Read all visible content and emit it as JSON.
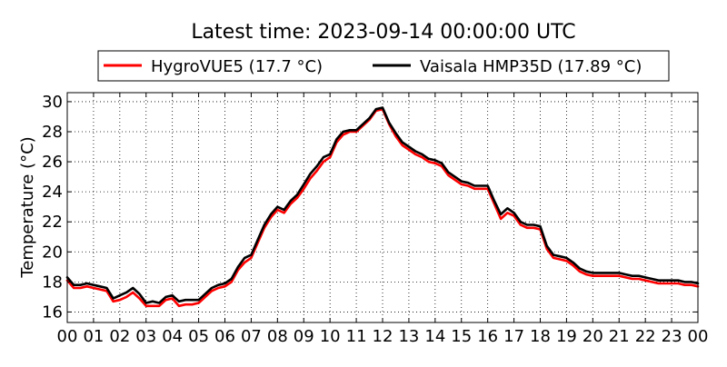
{
  "chart_data": {
    "type": "line",
    "title": "Latest time: 2023-09-14 00:00:00 UTC",
    "xlabel": "",
    "ylabel": "Temperature (°C)",
    "xlim": [
      0,
      24
    ],
    "ylim": [
      15.3,
      30.6
    ],
    "x_ticks": [
      "00",
      "01",
      "02",
      "03",
      "04",
      "05",
      "06",
      "07",
      "08",
      "09",
      "10",
      "11",
      "12",
      "13",
      "14",
      "15",
      "16",
      "17",
      "18",
      "19",
      "20",
      "21",
      "22",
      "23",
      "00"
    ],
    "y_ticks": [
      16,
      18,
      20,
      22,
      24,
      26,
      28,
      30
    ],
    "grid": true,
    "legend_position": "top-center",
    "x": [
      0,
      0.25,
      0.5,
      0.75,
      1,
      1.25,
      1.5,
      1.75,
      2,
      2.25,
      2.5,
      2.75,
      3,
      3.25,
      3.5,
      3.75,
      4,
      4.25,
      4.5,
      4.75,
      5,
      5.25,
      5.5,
      5.75,
      6,
      6.25,
      6.5,
      6.75,
      7,
      7.25,
      7.5,
      7.75,
      8,
      8.25,
      8.5,
      8.75,
      9,
      9.25,
      9.5,
      9.75,
      10,
      10.25,
      10.5,
      10.75,
      11,
      11.25,
      11.5,
      11.75,
      12,
      12.25,
      12.5,
      12.75,
      13,
      13.25,
      13.5,
      13.75,
      14,
      14.25,
      14.5,
      14.75,
      15,
      15.25,
      15.5,
      15.75,
      16,
      16.25,
      16.5,
      16.75,
      17,
      17.25,
      17.5,
      17.75,
      18,
      18.25,
      18.5,
      18.75,
      19,
      19.25,
      19.5,
      19.75,
      20,
      20.25,
      20.5,
      20.75,
      21,
      21.25,
      21.5,
      21.75,
      22,
      22.25,
      22.5,
      22.75,
      23,
      23.25,
      23.5,
      23.75,
      24
    ],
    "series": [
      {
        "name": "HygroVUE5 (17.7 °C)",
        "color": "#ff0000",
        "values": [
          18.1,
          17.6,
          17.6,
          17.7,
          17.6,
          17.5,
          17.4,
          16.7,
          16.8,
          17.0,
          17.3,
          16.9,
          16.4,
          16.4,
          16.4,
          16.8,
          16.9,
          16.4,
          16.5,
          16.5,
          16.6,
          17.0,
          17.4,
          17.6,
          17.7,
          18.0,
          18.8,
          19.3,
          19.6,
          20.6,
          21.6,
          22.3,
          22.8,
          22.6,
          23.2,
          23.6,
          24.2,
          24.9,
          25.4,
          26.0,
          26.3,
          27.3,
          27.8,
          28.0,
          28.0,
          28.4,
          28.8,
          29.4,
          29.5,
          28.5,
          27.7,
          27.1,
          26.8,
          26.5,
          26.3,
          26.0,
          25.9,
          25.7,
          25.1,
          24.8,
          24.5,
          24.4,
          24.2,
          24.2,
          24.2,
          23.2,
          22.2,
          22.6,
          22.4,
          21.8,
          21.6,
          21.6,
          21.5,
          20.2,
          19.6,
          19.5,
          19.4,
          19.1,
          18.7,
          18.5,
          18.4,
          18.4,
          18.4,
          18.4,
          18.4,
          18.3,
          18.2,
          18.2,
          18.1,
          18.0,
          17.9,
          17.9,
          17.9,
          17.9,
          17.8,
          17.8,
          17.7
        ]
      },
      {
        "name": "Vaisala HMP35D (17.89 °C)",
        "color": "#000000",
        "values": [
          18.3,
          17.8,
          17.8,
          17.9,
          17.8,
          17.7,
          17.6,
          16.9,
          17.1,
          17.3,
          17.6,
          17.2,
          16.6,
          16.7,
          16.6,
          17.0,
          17.1,
          16.7,
          16.8,
          16.8,
          16.8,
          17.2,
          17.6,
          17.8,
          17.9,
          18.2,
          19.0,
          19.6,
          19.8,
          20.8,
          21.8,
          22.5,
          23.0,
          22.8,
          23.4,
          23.8,
          24.5,
          25.2,
          25.7,
          26.3,
          26.5,
          27.5,
          28.0,
          28.1,
          28.1,
          28.5,
          28.9,
          29.5,
          29.6,
          28.6,
          27.9,
          27.3,
          27.0,
          26.7,
          26.5,
          26.2,
          26.1,
          25.9,
          25.3,
          25.0,
          24.7,
          24.6,
          24.4,
          24.4,
          24.4,
          23.4,
          22.5,
          22.9,
          22.6,
          22.0,
          21.8,
          21.8,
          21.7,
          20.4,
          19.8,
          19.7,
          19.6,
          19.3,
          18.9,
          18.7,
          18.6,
          18.6,
          18.6,
          18.6,
          18.6,
          18.5,
          18.4,
          18.4,
          18.3,
          18.2,
          18.1,
          18.1,
          18.1,
          18.1,
          18.0,
          18.0,
          17.9
        ]
      }
    ]
  }
}
